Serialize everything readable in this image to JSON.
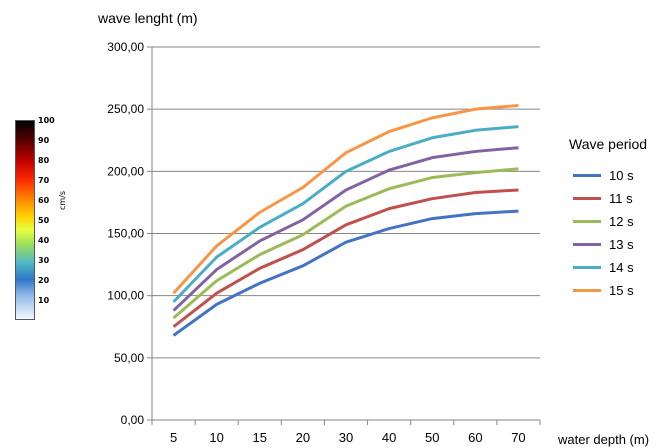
{
  "chart_data": {
    "type": "line",
    "ylabel": "wave lenght (m)",
    "xlabel": "water depth (m)",
    "categories": [
      "5",
      "10",
      "15",
      "20",
      "30",
      "40",
      "50",
      "60",
      "70"
    ],
    "ylim": [
      0,
      300
    ],
    "yticks": [
      "0,00",
      "50,00",
      "100,00",
      "150,00",
      "200,00",
      "250,00",
      "300,00"
    ],
    "grid": true,
    "legend_title": "Wave period",
    "legend_position": "right",
    "series": [
      {
        "name": "10 s",
        "color": "#4472C4",
        "values": [
          68,
          93,
          110,
          124,
          143,
          154,
          162,
          166,
          168
        ]
      },
      {
        "name": "11 s",
        "color": "#C0504D",
        "values": [
          75,
          102,
          122,
          137,
          157,
          170,
          178,
          183,
          185
        ]
      },
      {
        "name": "12 s",
        "color": "#9BBB59",
        "values": [
          82,
          112,
          133,
          149,
          172,
          186,
          195,
          199,
          202
        ]
      },
      {
        "name": "13 s",
        "color": "#8064A2",
        "values": [
          88,
          121,
          144,
          161,
          185,
          201,
          211,
          216,
          219
        ]
      },
      {
        "name": "14 s",
        "color": "#4BACC6",
        "values": [
          95,
          131,
          155,
          174,
          200,
          216,
          227,
          233,
          236
        ]
      },
      {
        "name": "15 s",
        "color": "#F79646",
        "values": [
          102,
          140,
          167,
          187,
          215,
          232,
          243,
          250,
          253
        ]
      }
    ]
  },
  "colorbar": {
    "unit": "cm/s",
    "ticks": [
      "100",
      "90",
      "80",
      "70",
      "60",
      "50",
      "40",
      "30",
      "20",
      "10"
    ]
  }
}
